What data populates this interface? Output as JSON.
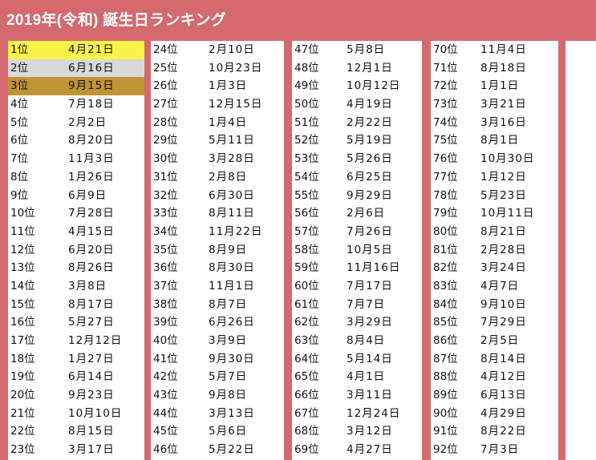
{
  "title": "2019年(令和) 誕生日ランキング",
  "colors": {
    "banner": "#d4696f",
    "gold": "#fbf24a",
    "silver": "#d9d9d9",
    "bronze": "#bf9433"
  },
  "columns": [
    [
      {
        "rank": "1位",
        "date": "4月21日"
      },
      {
        "rank": "2位",
        "date": "6月16日"
      },
      {
        "rank": "3位",
        "date": "9月15日"
      },
      {
        "rank": "4位",
        "date": "7月18日"
      },
      {
        "rank": "5位",
        "date": "2月2日"
      },
      {
        "rank": "6位",
        "date": "8月20日"
      },
      {
        "rank": "7位",
        "date": "11月3日"
      },
      {
        "rank": "8位",
        "date": "1月26日"
      },
      {
        "rank": "9位",
        "date": "6月9日"
      },
      {
        "rank": "10位",
        "date": "7月28日"
      },
      {
        "rank": "11位",
        "date": "4月15日"
      },
      {
        "rank": "12位",
        "date": "6月20日"
      },
      {
        "rank": "13位",
        "date": "8月26日"
      },
      {
        "rank": "14位",
        "date": "3月8日"
      },
      {
        "rank": "15位",
        "date": "8月17日"
      },
      {
        "rank": "16位",
        "date": "5月27日"
      },
      {
        "rank": "17位",
        "date": "12月12日"
      },
      {
        "rank": "18位",
        "date": "1月27日"
      },
      {
        "rank": "19位",
        "date": "6月14日"
      },
      {
        "rank": "20位",
        "date": "9月23日"
      },
      {
        "rank": "21位",
        "date": "10月10日"
      },
      {
        "rank": "22位",
        "date": "8月15日"
      },
      {
        "rank": "23位",
        "date": "3月17日"
      }
    ],
    [
      {
        "rank": "24位",
        "date": "2月10日"
      },
      {
        "rank": "25位",
        "date": "10月23日"
      },
      {
        "rank": "26位",
        "date": "1月3日"
      },
      {
        "rank": "27位",
        "date": "12月15日"
      },
      {
        "rank": "28位",
        "date": "1月4日"
      },
      {
        "rank": "29位",
        "date": "5月11日"
      },
      {
        "rank": "30位",
        "date": "3月28日"
      },
      {
        "rank": "31位",
        "date": "2月8日"
      },
      {
        "rank": "32位",
        "date": "6月30日"
      },
      {
        "rank": "33位",
        "date": "8月11日"
      },
      {
        "rank": "34位",
        "date": "11月22日"
      },
      {
        "rank": "35位",
        "date": "8月9日"
      },
      {
        "rank": "36位",
        "date": "8月30日"
      },
      {
        "rank": "37位",
        "date": "11月1日"
      },
      {
        "rank": "38位",
        "date": "8月7日"
      },
      {
        "rank": "39位",
        "date": "6月26日"
      },
      {
        "rank": "40位",
        "date": "3月9日"
      },
      {
        "rank": "41位",
        "date": "9月30日"
      },
      {
        "rank": "42位",
        "date": "5月7日"
      },
      {
        "rank": "43位",
        "date": "9月8日"
      },
      {
        "rank": "44位",
        "date": "3月13日"
      },
      {
        "rank": "45位",
        "date": "5月6日"
      },
      {
        "rank": "46位",
        "date": "5月22日"
      }
    ],
    [
      {
        "rank": "47位",
        "date": "5月8日"
      },
      {
        "rank": "48位",
        "date": "12月1日"
      },
      {
        "rank": "49位",
        "date": "10月12日"
      },
      {
        "rank": "50位",
        "date": "4月19日"
      },
      {
        "rank": "51位",
        "date": "2月22日"
      },
      {
        "rank": "52位",
        "date": "5月19日"
      },
      {
        "rank": "53位",
        "date": "5月26日"
      },
      {
        "rank": "54位",
        "date": "6月25日"
      },
      {
        "rank": "55位",
        "date": "9月29日"
      },
      {
        "rank": "56位",
        "date": "2月6日"
      },
      {
        "rank": "57位",
        "date": "7月26日"
      },
      {
        "rank": "58位",
        "date": "10月5日"
      },
      {
        "rank": "59位",
        "date": "11月16日"
      },
      {
        "rank": "60位",
        "date": "7月17日"
      },
      {
        "rank": "61位",
        "date": "7月7日"
      },
      {
        "rank": "62位",
        "date": "3月29日"
      },
      {
        "rank": "63位",
        "date": "8月4日"
      },
      {
        "rank": "64位",
        "date": "5月14日"
      },
      {
        "rank": "65位",
        "date": "4月1日"
      },
      {
        "rank": "66位",
        "date": "3月11日"
      },
      {
        "rank": "67位",
        "date": "12月24日"
      },
      {
        "rank": "68位",
        "date": "3月12日"
      },
      {
        "rank": "69位",
        "date": "4月27日"
      }
    ],
    [
      {
        "rank": "70位",
        "date": "11月4日"
      },
      {
        "rank": "71位",
        "date": "8月18日"
      },
      {
        "rank": "72位",
        "date": "1月1日"
      },
      {
        "rank": "73位",
        "date": "3月21日"
      },
      {
        "rank": "74位",
        "date": "3月16日"
      },
      {
        "rank": "75位",
        "date": "8月1日"
      },
      {
        "rank": "76位",
        "date": "10月30日"
      },
      {
        "rank": "77位",
        "date": "1月12日"
      },
      {
        "rank": "78位",
        "date": "5月23日"
      },
      {
        "rank": "79位",
        "date": "10月11日"
      },
      {
        "rank": "80位",
        "date": "8月21日"
      },
      {
        "rank": "81位",
        "date": "2月28日"
      },
      {
        "rank": "82位",
        "date": "3月24日"
      },
      {
        "rank": "83位",
        "date": "4月7日"
      },
      {
        "rank": "84位",
        "date": "9月10日"
      },
      {
        "rank": "85位",
        "date": "7月29日"
      },
      {
        "rank": "86位",
        "date": "2月5日"
      },
      {
        "rank": "87位",
        "date": "8月14日"
      },
      {
        "rank": "88位",
        "date": "4月12日"
      },
      {
        "rank": "89位",
        "date": "6月13日"
      },
      {
        "rank": "90位",
        "date": "4月29日"
      },
      {
        "rank": "91位",
        "date": "8月22日"
      },
      {
        "rank": "92位",
        "date": "7月3日"
      }
    ]
  ]
}
